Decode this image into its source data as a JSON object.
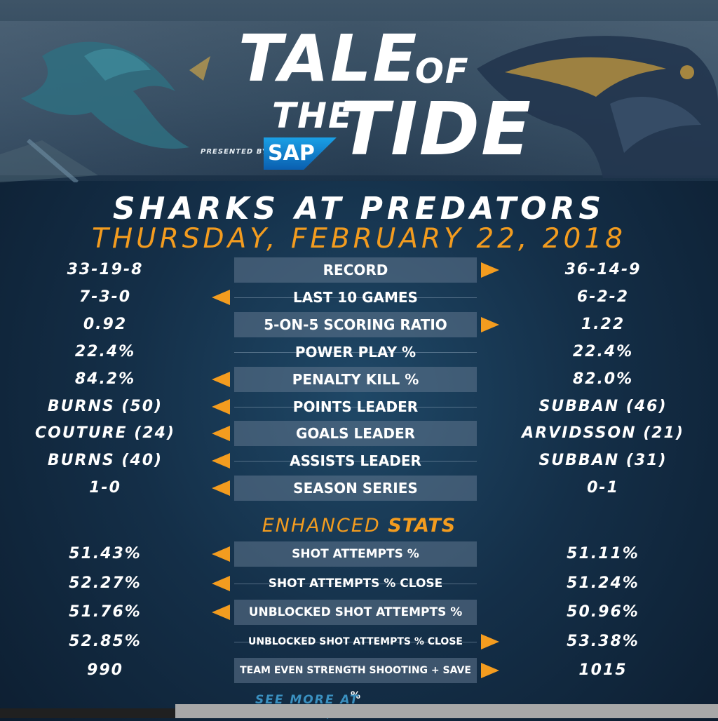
{
  "header": {
    "title_word1": "TALE",
    "title_word2": "OF",
    "title_word3": "THE",
    "title_word4": "TIDE",
    "presented_by": "PRESENTED BY",
    "sponsor": "SAP"
  },
  "matchup": "SHARKS AT PREDATORS",
  "date": "THURSDAY, FEBRUARY 22, 2018",
  "colors": {
    "accent": "#f39c1f",
    "background": "#142f48",
    "box": "#60768e"
  },
  "stats": [
    {
      "label": "RECORD",
      "left": "33-19-8",
      "right": "36-14-9",
      "advantage": "right",
      "style": "box"
    },
    {
      "label": "LAST 10 GAMES",
      "left": "7-3-0",
      "right": "6-2-2",
      "advantage": "left",
      "style": "line"
    },
    {
      "label": "5-ON-5 SCORING RATIO",
      "left": "0.92",
      "right": "1.22",
      "advantage": "right",
      "style": "box"
    },
    {
      "label": "POWER PLAY %",
      "left": "22.4%",
      "right": "22.4%",
      "advantage": "none",
      "style": "line"
    },
    {
      "label": "PENALTY KILL %",
      "left": "84.2%",
      "right": "82.0%",
      "advantage": "left",
      "style": "box"
    },
    {
      "label": "POINTS LEADER",
      "left": "BURNS (50)",
      "right": "SUBBAN (46)",
      "advantage": "left",
      "style": "line"
    },
    {
      "label": "GOALS LEADER",
      "left": "COUTURE (24)",
      "right": "ARVIDSSON (21)",
      "advantage": "left",
      "style": "box"
    },
    {
      "label": "ASSISTS LEADER",
      "left": "BURNS (40)",
      "right": "SUBBAN (31)",
      "advantage": "left",
      "style": "line"
    },
    {
      "label": "SEASON SERIES",
      "left": "1-0",
      "right": "0-1",
      "advantage": "left",
      "style": "box"
    }
  ],
  "enhanced": {
    "heading_plain": "ENHANCED",
    "heading_bold": "STATS",
    "rows": [
      {
        "label": "SHOT ATTEMPTS %",
        "left": "51.43%",
        "right": "51.11%",
        "advantage": "left",
        "style": "box"
      },
      {
        "label": "SHOT ATTEMPTS % CLOSE",
        "left": "52.27%",
        "right": "51.24%",
        "advantage": "left",
        "style": "line"
      },
      {
        "label": "UNBLOCKED SHOT ATTEMPTS %",
        "left": "51.76%",
        "right": "50.96%",
        "advantage": "left",
        "style": "box"
      },
      {
        "label": "UNBLOCKED SHOT ATTEMPTS % CLOSE",
        "left": "52.85%",
        "right": "53.38%",
        "advantage": "right",
        "style": "line"
      },
      {
        "label": "TEAM EVEN STRENGTH SHOOTING + SAVE %",
        "left": "990",
        "right": "1015",
        "advantage": "right",
        "style": "box"
      }
    ]
  },
  "footer": {
    "see_more": "SEE MORE AT NHL.COM/STATS"
  }
}
